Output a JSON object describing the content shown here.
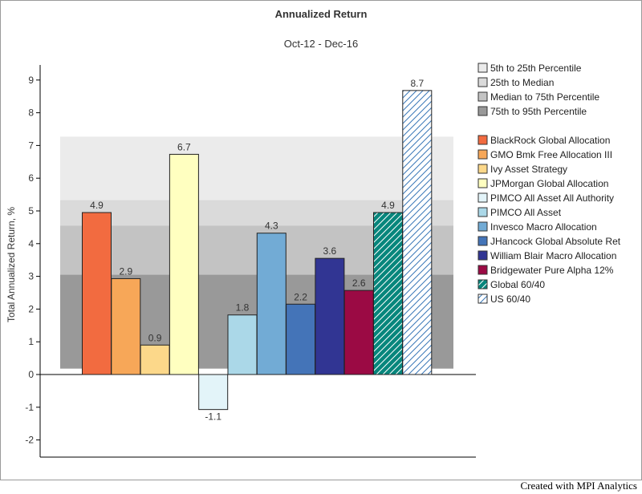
{
  "chart_data": {
    "type": "bar",
    "title": "Annualized Return",
    "subtitle": "Oct-12 - Dec-16",
    "ylabel": "Total Annualized Return, %",
    "ylim": [
      -2.5,
      9.5
    ],
    "yticks": [
      -2,
      -1,
      0,
      1,
      2,
      3,
      4,
      5,
      6,
      7,
      8,
      9
    ],
    "grid": false,
    "legend_position": "right",
    "percentile_bands": [
      {
        "name": "5th to 25th Percentile",
        "from": 5.33,
        "to": 7.27,
        "color": "#ebebeb"
      },
      {
        "name": "25th to Median",
        "from": 4.55,
        "to": 5.33,
        "color": "#dadada"
      },
      {
        "name": "Median to 75th Percentile",
        "from": 3.05,
        "to": 4.55,
        "color": "#c3c3c3"
      },
      {
        "name": "75th to 95th Percentile",
        "from": 0.18,
        "to": 3.05,
        "color": "#999999"
      }
    ],
    "series": [
      {
        "name": "BlackRock Global Allocation",
        "value": 4.95,
        "label": "4.9",
        "color": "#f26b40",
        "hatch": false
      },
      {
        "name": "GMO Bmk Free Allocation III",
        "value": 2.93,
        "label": "2.9",
        "color": "#f7a758",
        "hatch": false
      },
      {
        "name": "Ivy Asset Strategy",
        "value": 0.9,
        "label": "0.9",
        "color": "#fcd88a",
        "hatch": false
      },
      {
        "name": "JPMorgan Global Allocation",
        "value": 6.73,
        "label": "6.7",
        "color": "#ffffc0",
        "hatch": false
      },
      {
        "name": "PIMCO All Asset All Authority",
        "value": -1.07,
        "label": "-1.1",
        "color": "#e3f4f9",
        "hatch": false
      },
      {
        "name": "PIMCO All Asset",
        "value": 1.82,
        "label": "1.8",
        "color": "#abd8e8",
        "hatch": false
      },
      {
        "name": "Invesco Macro Allocation",
        "value": 4.32,
        "label": "4.3",
        "color": "#72abd5",
        "hatch": false
      },
      {
        "name": "JHancock Global Absolute Ret",
        "value": 2.15,
        "label": "2.2",
        "color": "#4474b8",
        "hatch": false
      },
      {
        "name": "William Blair Macro Allocation",
        "value": 3.55,
        "label": "3.6",
        "color": "#313593",
        "hatch": false
      },
      {
        "name": "Bridgewater Pure Alpha 12%",
        "value": 2.57,
        "label": "2.6",
        "color": "#9b0a44",
        "hatch": false
      },
      {
        "name": "Global 60/40",
        "value": 4.95,
        "label": "4.9",
        "color": "#07867c",
        "hatch": true
      },
      {
        "name": "US 60/40",
        "value": 8.68,
        "label": "8.7",
        "color": "#cfe3fa",
        "hatch": true
      }
    ]
  },
  "footer": {
    "credit": "Created with MPI Analytics"
  }
}
